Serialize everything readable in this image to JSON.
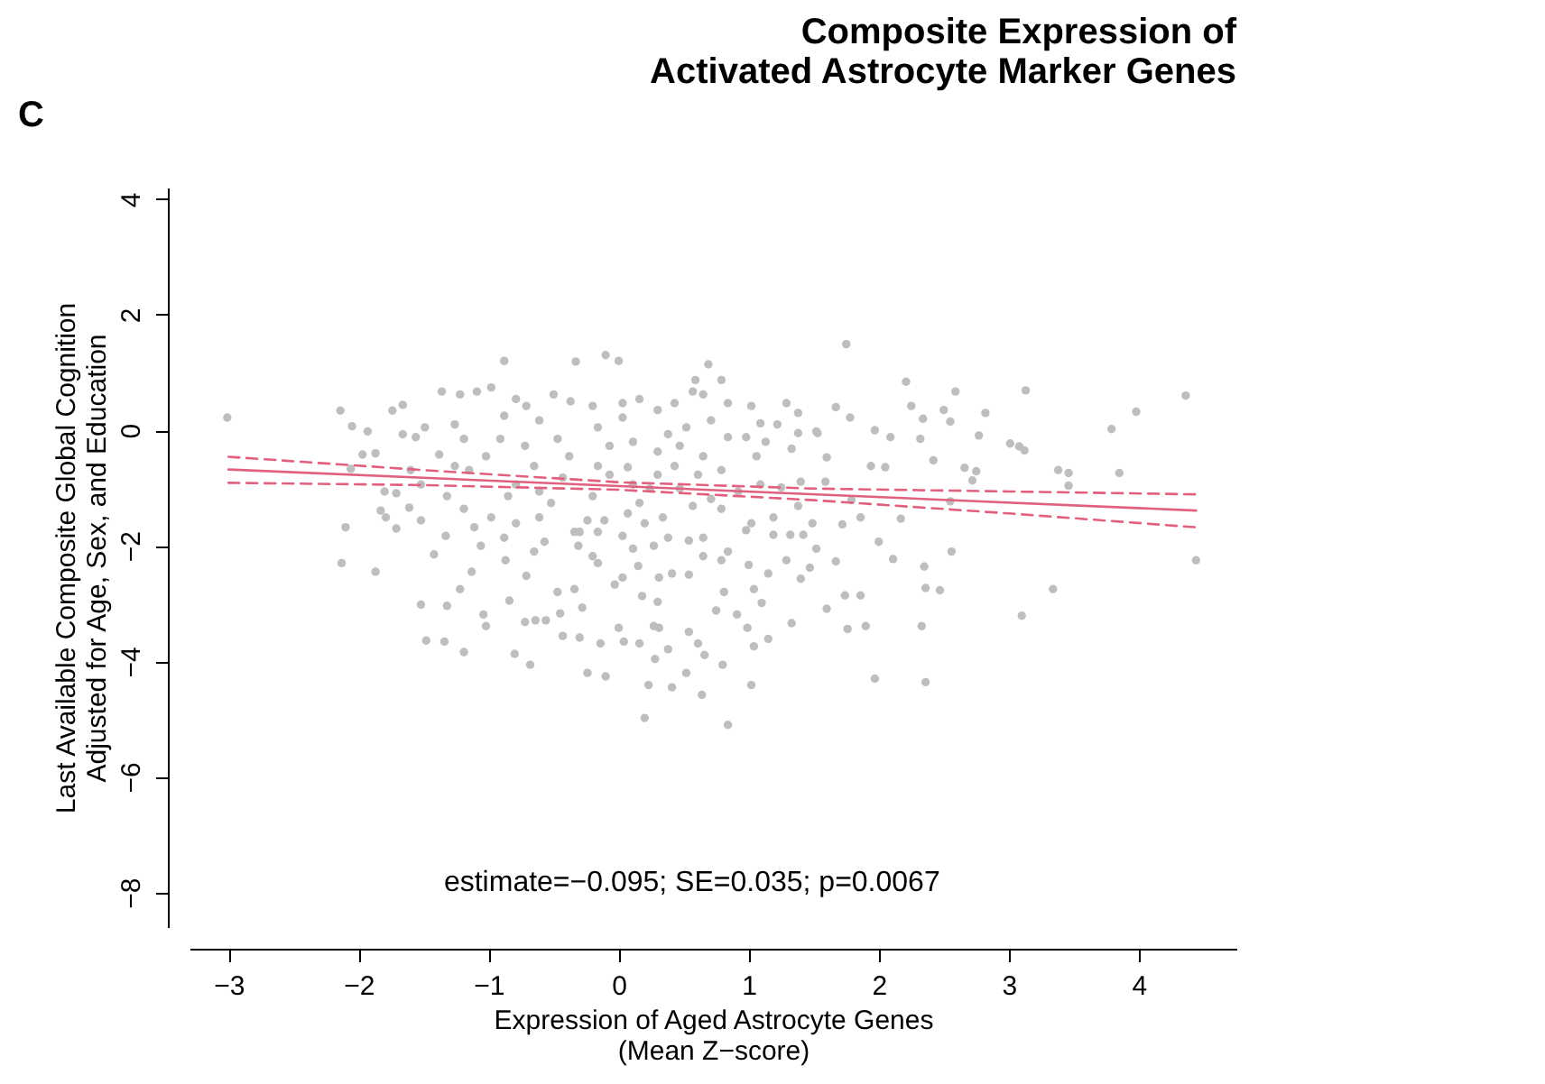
{
  "chart_data": {
    "type": "scatter",
    "title": "Composite Expression of\nActivated Astrocyte Marker Genes",
    "xlabel": "Expression of Aged Astrocyte Genes\n(Mean Z−score)",
    "ylabel": "Last Available Composite Global Cognition\nAdjusted for Age, Sex, and Education",
    "xlim": [
      -3.3,
      4.75
    ],
    "ylim": [
      -8.6,
      4.2
    ],
    "xticks": [
      {
        "value": -3,
        "label": "−3"
      },
      {
        "value": -2,
        "label": "−2"
      },
      {
        "value": -1,
        "label": "−1"
      },
      0,
      1,
      2,
      3,
      4
    ],
    "yticks": [
      {
        "value": -8,
        "label": "−8"
      },
      {
        "value": -6,
        "label": "−6"
      },
      {
        "value": -4,
        "label": "−4"
      },
      {
        "value": -2,
        "label": "−2"
      },
      0,
      2,
      4
    ],
    "grid": false,
    "annotations": [
      "C",
      "estimate=−0.095; SE=0.035; p=0.0067"
    ],
    "series": [
      {
        "color": "#bebebe",
        "marker": "circle",
        "x": [
          -3.01,
          -2.14,
          -2.13,
          -1.87,
          -2.1,
          -0.88,
          -0.1,
          0,
          -0.33,
          0.69,
          0.2,
          0.84,
          0.64,
          0.41,
          0.23,
          -1.48,
          -1.34,
          -1.19,
          -0.8,
          -0.68,
          -0.24,
          -0.1,
          1.02,
          0.52,
          0.8,
          -1.52,
          -1.32,
          1.75,
          2.21,
          2.59,
          3.13,
          4.36,
          4.44,
          3.98,
          3.79,
          3.85,
          3.38,
          3.46,
          3.46,
          3.01,
          3.08,
          3.12,
          3.34,
          3.1,
          2.82,
          2.77,
          2.66,
          2.75,
          2.72,
          2.55,
          2.56,
          2.47,
          2.36,
          2.35,
          2.33,
          1.97,
          2.36,
          1.9,
          1.76,
          1.86,
          1.74,
          2.0,
          2.11,
          1.67,
          1.6,
          2.42,
          2.34,
          2.55,
          2.5,
          2.25,
          2.32,
          2.17,
          1.78,
          1.67,
          1.97,
          2.09,
          1.94,
          2.05,
          1.86,
          1.72,
          1.52,
          1.47,
          1.4,
          1.32,
          1.42,
          -2.05,
          -1.93,
          -1.97,
          -1.87,
          -2.06,
          -1.74,
          -1.66,
          -1.8,
          -1.71,
          -1.83,
          -1.79,
          -1.71,
          -1.61,
          -1.52,
          -1.42,
          -1.33,
          -1.13,
          -1.22,
          -1.04,
          -1.02,
          -0.84,
          -0.71,
          -0.72,
          -0.64,
          -0.56,
          -0.87,
          -1.06,
          -1.11,
          -0.47,
          -0.45,
          -0.34,
          -0.28,
          -0.43,
          -0.3,
          -0.14,
          0.0,
          0.04,
          0.16,
          -0.03,
          0.03,
          0.18,
          0.3,
          0.31,
          0.27,
          0.38,
          0.28,
          0.54,
          0.61,
          0.66,
          0.75,
          0.91,
          0.99,
          1.04,
          1.15,
          1.33,
          0.81,
          1.04,
          1.1,
          1.29,
          1.15,
          1.0,
          0.79,
          0.65,
          0.54,
          0.41,
          0.31,
          0.15,
          -0.16,
          -0.31,
          -0.2,
          -0.3,
          -0.16,
          0.03,
          0.11,
          0.27,
          0.38,
          0.54,
          0.65,
          0.84,
          0.98,
          1.19,
          -1.66,
          -1.49,
          -1.36,
          -1.22,
          -1.09,
          -0.98,
          -1.26,
          -1.19,
          -1.38,
          -1.26,
          -1.15,
          -1.02,
          -0.91,
          -0.88,
          -0.79,
          -0.71,
          -0.61,
          -0.72,
          -0.65,
          -0.79,
          -0.85,
          -0.61,
          -0.52,
          -0.43,
          -0.38,
          -0.47,
          -0.5,
          -0.37,
          -0.2,
          -0.16,
          -0.07,
          -0.16,
          -0.07,
          -0.2,
          -0.11,
          0.07,
          0.16,
          0.11,
          0.07,
          0.11,
          0.03,
          0.03,
          0.16,
          0.3,
          0.43,
          0.57,
          0.59,
          0.79,
          0.65,
          0.84,
          1.02,
          1.29,
          1.38,
          1.22,
          1.09,
          0.98,
          1.13,
          1.52,
          1.33,
          1.06,
          0.84,
          0.71,
          0.52,
          0.38,
          0.3,
          0.47,
          0.65,
          0.79,
          0.61,
          0.43,
          0.3,
          0.24,
          0.47,
          0.57,
          0.71,
          0.79,
          0.92,
          1.09,
          1.25,
          1.4,
          1.38,
          1.19,
          1.02,
          0.34,
          0.2,
          -0.24,
          -0.34,
          -0.61,
          -0.79,
          -0.88,
          -0.65,
          -0.57,
          -0.98,
          -1.19,
          -1.32,
          -1.52,
          -1.6,
          -1.56,
          1.38,
          1.53,
          1.6,
          1.59,
          1.79,
          1.49
        ],
        "values": [
          0.22,
          0.34,
          -2.3,
          -2.45,
          -1.68,
          1.2,
          1.3,
          1.2,
          1.19,
          1.14,
          -4.98,
          -5.1,
          -4.58,
          -4.45,
          -4.41,
          -3.64,
          -3.66,
          -3.84,
          -3.87,
          -4.06,
          -4.2,
          -4.26,
          -4.41,
          -4.2,
          -4.06,
          -3.02,
          -3.04,
          1.49,
          0.84,
          0.67,
          0.69,
          0.6,
          -2.25,
          0.32,
          0.02,
          -0.74,
          -0.69,
          -0.74,
          -0.96,
          -0.23,
          -0.28,
          -0.35,
          -2.75,
          -3.21,
          0.3,
          -0.09,
          -0.65,
          -0.71,
          -0.87,
          -1.23,
          -2.1,
          -2.77,
          -2.73,
          -2.36,
          -3.39,
          -4.3,
          -4.36,
          -3.39,
          -3.44,
          -2.86,
          -2.86,
          -1.93,
          -2.23,
          -2.27,
          -3.09,
          -0.52,
          0.2,
          0.15,
          0.35,
          0.42,
          -0.15,
          -1.53,
          0.22,
          0.4,
          0.0,
          -0.12,
          -0.62,
          -0.64,
          -1.51,
          -1.63,
          -2.05,
          -2.38,
          -2.57,
          -1.81,
          -1.81,
          0.07,
          -0.02,
          -0.42,
          -0.4,
          -0.67,
          0.34,
          0.44,
          -1.06,
          -1.09,
          -1.39,
          -1.51,
          -1.7,
          -1.34,
          -1.56,
          -2.15,
          -1.83,
          -2.45,
          -2.75,
          -3.19,
          -3.39,
          -2.95,
          -2.52,
          -3.32,
          -3.29,
          -3.29,
          -2.25,
          -2.0,
          -1.68,
          -2.8,
          -3.17,
          -2.75,
          -3.07,
          -3.56,
          -3.59,
          -3.69,
          -3.42,
          -3.66,
          -3.69,
          -2.67,
          -2.55,
          -2.87,
          -2.97,
          -3.42,
          -3.39,
          -3.79,
          -3.96,
          -3.49,
          -3.69,
          -3.89,
          -3.12,
          -3.19,
          -3.42,
          -3.74,
          -3.61,
          -3.34,
          -2.8,
          -2.75,
          -2.99,
          -2.25,
          -2.48,
          -2.33,
          -2.25,
          -2.18,
          -2.5,
          -2.48,
          -2.55,
          -2.35,
          -2.3,
          -2.0,
          -2.18,
          -1.76,
          -1.76,
          -1.83,
          -2.05,
          -2.0,
          -1.86,
          -1.91,
          -1.86,
          -2.1,
          -1.73,
          -1.81,
          -0.07,
          0.05,
          0.67,
          0.62,
          0.67,
          0.74,
          0.1,
          -0.15,
          -0.42,
          -0.62,
          -0.69,
          -0.45,
          -0.15,
          0.25,
          0.54,
          0.42,
          0.17,
          -0.27,
          -0.62,
          -0.94,
          -1.14,
          -1.06,
          -1.26,
          -0.82,
          -0.45,
          -0.15,
          0.62,
          0.5,
          0.42,
          0.05,
          -0.27,
          -0.62,
          -0.77,
          -1.14,
          -1.56,
          -1.44,
          -1.26,
          -0.94,
          -0.64,
          -0.2,
          0.22,
          0.47,
          0.54,
          0.35,
          0.47,
          0.67,
          0.87,
          0.87,
          0.62,
          0.47,
          0.42,
          0.47,
          0.3,
          0.1,
          0.12,
          -0.12,
          -0.2,
          -0.02,
          -0.32,
          -0.45,
          -0.12,
          0.17,
          0.05,
          -0.07,
          -0.37,
          -0.27,
          -0.45,
          -0.69,
          -0.77,
          -0.62,
          -0.77,
          -1.01,
          -1.01,
          -1.31,
          -1.19,
          -1.36,
          -1.06,
          -0.94,
          -0.99,
          -0.89,
          -1.31,
          -1.51,
          -1.61,
          -1.51,
          -1.61,
          -1.56,
          -1.76,
          -1.51,
          -1.61,
          -1.86,
          -2.1,
          -1.93,
          -1.51,
          -1.36,
          -1.14,
          -0.94,
          -0.69,
          -0.12,
          -0.05,
          -0.05,
          -0.47,
          -0.89,
          -1.21,
          -1.61
        ]
      },
      {
        "type": "line",
        "color": "#e0607e",
        "line_style": "solid",
        "x": [
          -3,
          4.44
        ],
        "values": [
          -0.68,
          -1.39
        ]
      },
      {
        "type": "line",
        "color": "#e0607e",
        "line_style": "dashed",
        "x": [
          -3,
          -1.5,
          0,
          1.5,
          3,
          4.44
        ],
        "values": [
          -0.46,
          -0.69,
          -0.9,
          -1.01,
          -1.06,
          -1.11
        ]
      },
      {
        "type": "line",
        "color": "#e0607e",
        "line_style": "dashed",
        "x": [
          -3,
          -1.5,
          0,
          1.5,
          3,
          4.44
        ],
        "values": [
          -0.91,
          -0.95,
          -1.03,
          -1.21,
          -1.44,
          -1.68
        ]
      }
    ]
  }
}
